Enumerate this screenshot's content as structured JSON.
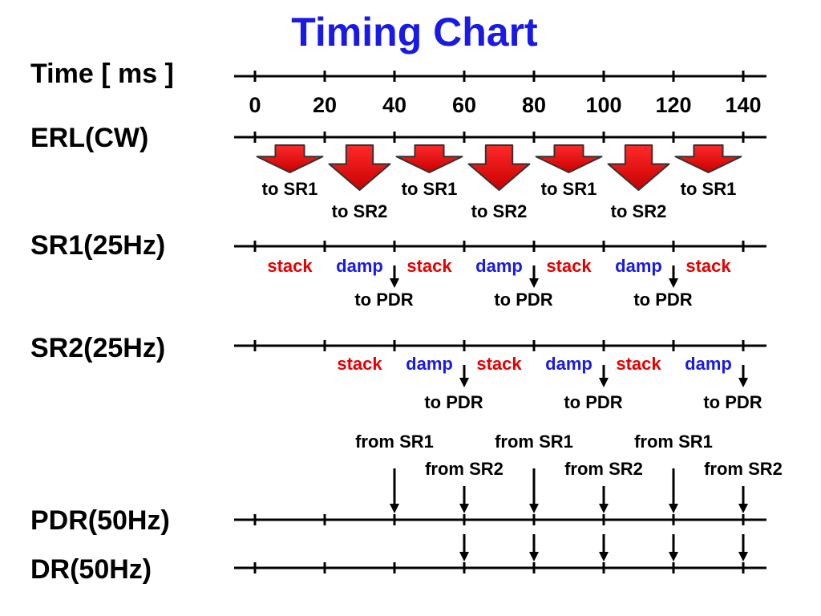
{
  "title": "Timing Chart",
  "time_axis": {
    "label": "Time [ ms ]",
    "ticks": [
      "0",
      "20",
      "40",
      "60",
      "80",
      "100",
      "120",
      "140"
    ]
  },
  "rows": [
    {
      "id": "erl",
      "label": "ERL(CW)",
      "transfers": [
        {
          "label": "to SR1",
          "target": "SR1",
          "from_ms": 0,
          "to_ms": 20
        },
        {
          "label": "to SR2",
          "target": "SR2",
          "from_ms": 20,
          "to_ms": 40
        },
        {
          "label": "to SR1",
          "target": "SR1",
          "from_ms": 40,
          "to_ms": 60
        },
        {
          "label": "to SR2",
          "target": "SR2",
          "from_ms": 60,
          "to_ms": 80
        },
        {
          "label": "to SR1",
          "target": "SR1",
          "from_ms": 80,
          "to_ms": 100
        },
        {
          "label": "to SR2",
          "target": "SR2",
          "from_ms": 100,
          "to_ms": 120
        },
        {
          "label": "to SR1",
          "target": "SR1",
          "from_ms": 120,
          "to_ms": 140
        }
      ]
    },
    {
      "id": "sr1",
      "label": "SR1(25Hz)",
      "phases": [
        {
          "label": "stack",
          "kind": "stack",
          "from_ms": 0,
          "to_ms": 20
        },
        {
          "label": "damp",
          "kind": "damp",
          "from_ms": 20,
          "to_ms": 40
        },
        {
          "label": "stack",
          "kind": "stack",
          "from_ms": 40,
          "to_ms": 60
        },
        {
          "label": "damp",
          "kind": "damp",
          "from_ms": 60,
          "to_ms": 80
        },
        {
          "label": "stack",
          "kind": "stack",
          "from_ms": 80,
          "to_ms": 100
        },
        {
          "label": "damp",
          "kind": "damp",
          "from_ms": 100,
          "to_ms": 120
        },
        {
          "label": "stack",
          "kind": "stack",
          "from_ms": 120,
          "to_ms": 140
        }
      ],
      "outputs": [
        {
          "label": "to PDR",
          "at_ms": 40
        },
        {
          "label": "to PDR",
          "at_ms": 80
        },
        {
          "label": "to PDR",
          "at_ms": 120
        }
      ]
    },
    {
      "id": "sr2",
      "label": "SR2(25Hz)",
      "phases": [
        {
          "label": "stack",
          "kind": "stack",
          "from_ms": 20,
          "to_ms": 40
        },
        {
          "label": "damp",
          "kind": "damp",
          "from_ms": 40,
          "to_ms": 60
        },
        {
          "label": "stack",
          "kind": "stack",
          "from_ms": 60,
          "to_ms": 80
        },
        {
          "label": "damp",
          "kind": "damp",
          "from_ms": 80,
          "to_ms": 100
        },
        {
          "label": "stack",
          "kind": "stack",
          "from_ms": 100,
          "to_ms": 120
        },
        {
          "label": "damp",
          "kind": "damp",
          "from_ms": 120,
          "to_ms": 140
        }
      ],
      "outputs": [
        {
          "label": "to PDR",
          "at_ms": 60
        },
        {
          "label": "to PDR",
          "at_ms": 100
        },
        {
          "label": "to PDR",
          "at_ms": 140
        }
      ]
    },
    {
      "id": "pdr",
      "label": "PDR(50Hz)",
      "inputs": [
        {
          "label": "from SR1",
          "at_ms": 40
        },
        {
          "label": "from SR2",
          "at_ms": 60
        },
        {
          "label": "from SR1",
          "at_ms": 80
        },
        {
          "label": "from SR2",
          "at_ms": 100
        },
        {
          "label": "from SR1",
          "at_ms": 120
        },
        {
          "label": "from SR2",
          "at_ms": 140
        }
      ]
    },
    {
      "id": "dr",
      "label": "DR(50Hz)",
      "inputs": [
        {
          "at_ms": 60
        },
        {
          "at_ms": 80
        },
        {
          "at_ms": 100
        },
        {
          "at_ms": 120
        },
        {
          "at_ms": 140
        }
      ]
    }
  ],
  "colors": {
    "title": "#1a1ae6",
    "stack": "#e60000",
    "damp": "#1a1ae6",
    "transfer_arrow": "#ee0000",
    "line": "#000000"
  }
}
